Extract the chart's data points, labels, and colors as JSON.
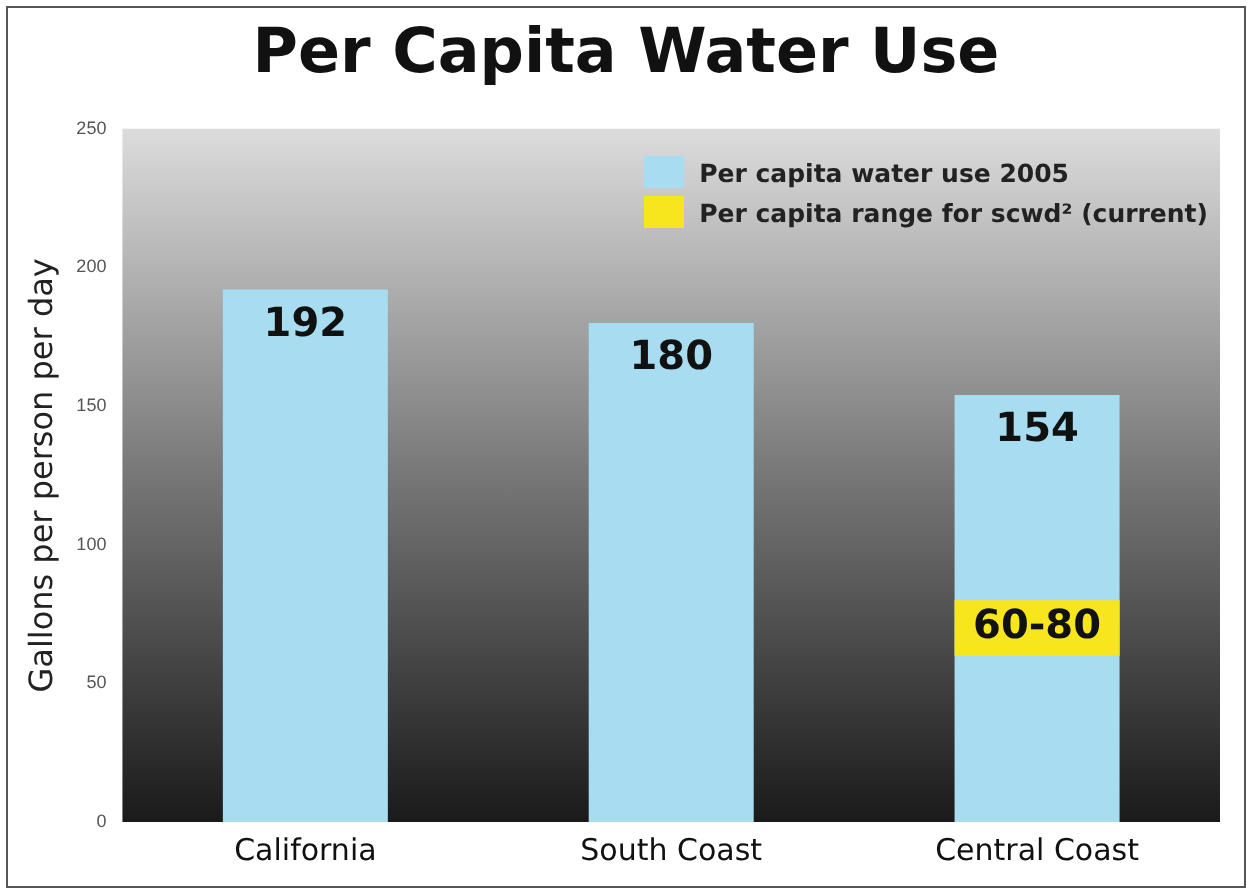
{
  "chart_data": {
    "type": "bar",
    "title": "Per Capita Water Use",
    "ylabel": "Gallons per person per day",
    "categories": [
      "California",
      "South Coast",
      "Central Coast"
    ],
    "series": [
      {
        "name": "Per capita water use 2005",
        "color": "#a8dcf0",
        "values": [
          192,
          180,
          154
        ],
        "value_labels": [
          "192",
          "180",
          "154"
        ]
      },
      {
        "name": "Per capita range for scwd² (current)",
        "color": "#f7e51e",
        "base": [
          null,
          null,
          60
        ],
        "values": [
          null,
          null,
          20
        ],
        "value_labels": [
          null,
          null,
          "60-80"
        ]
      }
    ],
    "ylim": [
      0,
      250
    ],
    "yticks": [
      0,
      50,
      100,
      150,
      200,
      250
    ],
    "grid": false,
    "legend": "top right"
  }
}
